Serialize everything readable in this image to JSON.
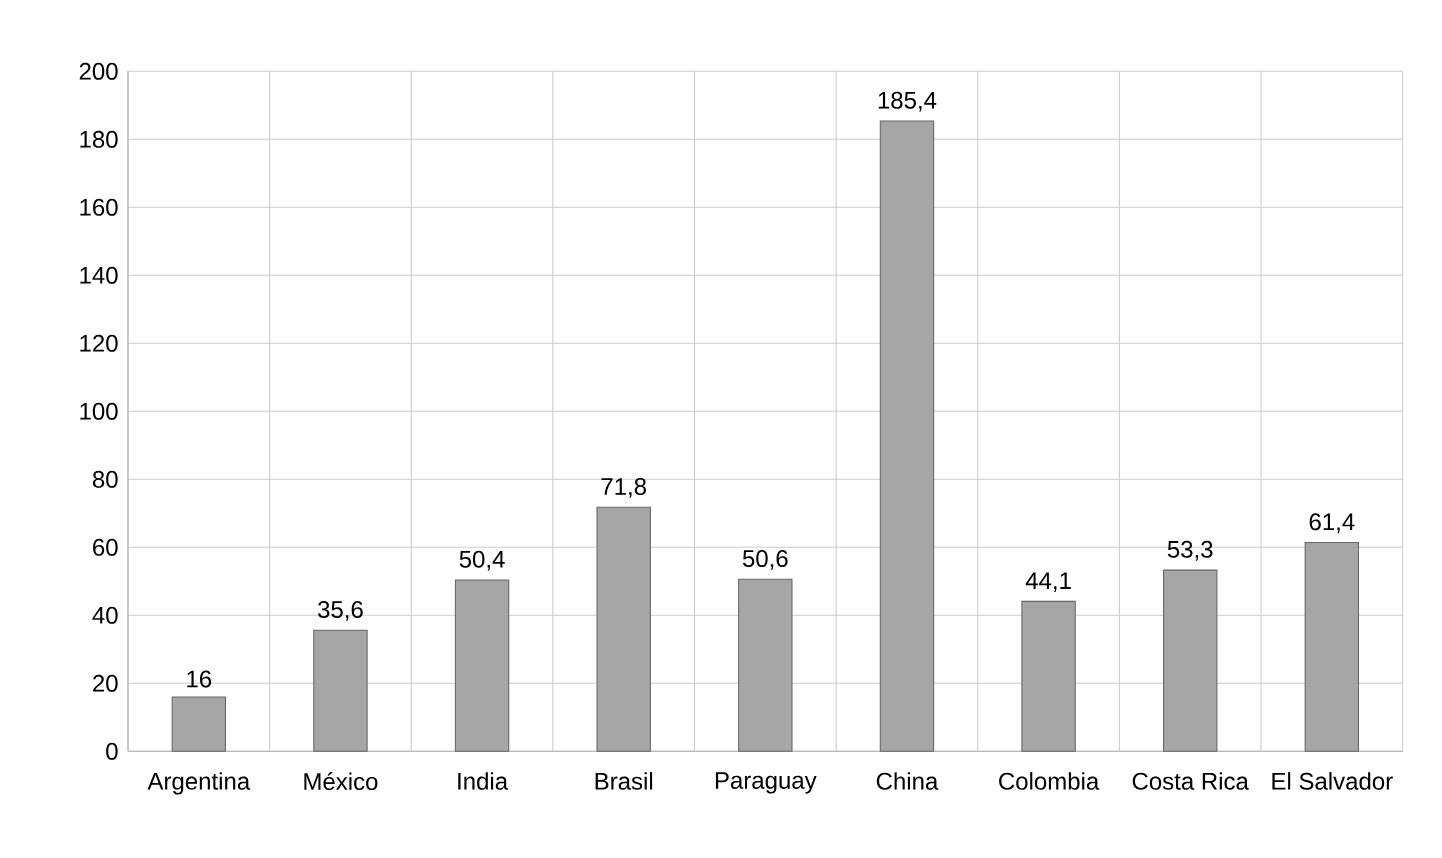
{
  "chart_data": {
    "type": "bar",
    "categories": [
      "Argentina",
      "México",
      "India",
      "Brasil",
      "Paraguay",
      "China",
      "Colombia",
      "Costa Rica",
      "El Salvador"
    ],
    "values": [
      16,
      35.6,
      50.4,
      71.8,
      50.6,
      185.4,
      44.1,
      53.3,
      61.4
    ],
    "value_labels": [
      "16",
      "35,6",
      "50,4",
      "71,8",
      "50,6",
      "185,4",
      "44,1",
      "53,3",
      "61,4"
    ],
    "color": "#a6a6a6",
    "ylim": [
      0,
      200
    ],
    "yticks": [
      0,
      20,
      40,
      60,
      80,
      100,
      120,
      140,
      160,
      180,
      200
    ],
    "grid": true
  }
}
